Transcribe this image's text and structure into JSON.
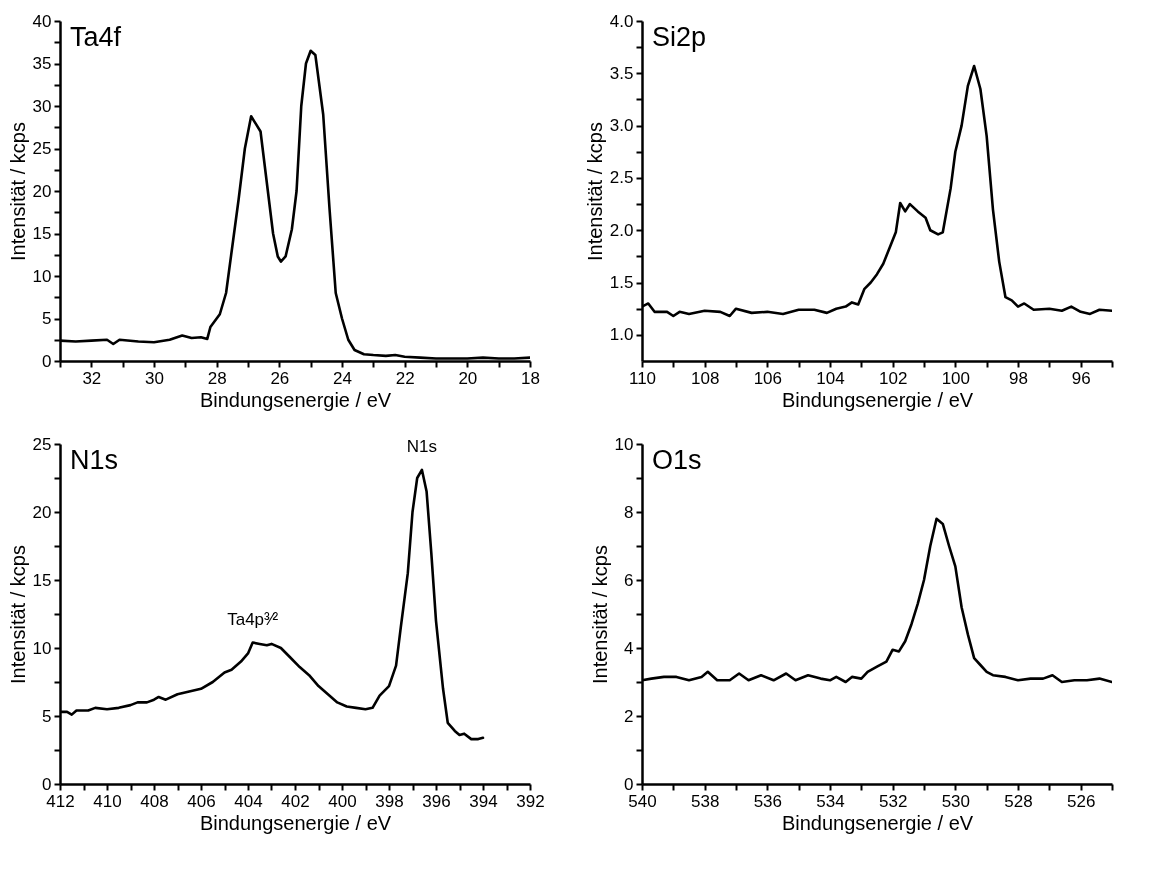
{
  "chart_data": [
    {
      "type": "line",
      "title": "Ta4f",
      "xlabel": "Bindungsenergie / eV",
      "ylabel": "Intensität / kcps",
      "color": "#000000",
      "line_style": "solid",
      "xlim": [
        33,
        18
      ],
      "ylim": [
        0,
        40
      ],
      "xticks": [
        {
          "value": 33,
          "label": null
        },
        32,
        {
          "value": 31,
          "label": null
        },
        30,
        {
          "value": 29,
          "label": null
        },
        28,
        {
          "value": 27,
          "label": null
        },
        26,
        {
          "value": 25,
          "label": null
        },
        24,
        {
          "value": 23,
          "label": null
        },
        22,
        {
          "value": 21,
          "label": null
        },
        20,
        {
          "value": 19,
          "label": null
        },
        18
      ],
      "yticks": [
        0,
        {
          "value": 2.5,
          "label": null
        },
        5,
        {
          "value": 7.5,
          "label": null
        },
        10,
        {
          "value": 12.5,
          "label": null
        },
        15,
        {
          "value": 17.5,
          "label": null
        },
        20,
        {
          "value": 22.5,
          "label": null
        },
        25,
        {
          "value": 27.5,
          "label": null
        },
        30,
        {
          "value": 32.5,
          "label": null
        },
        35,
        {
          "value": 37.5,
          "label": null
        },
        40
      ],
      "x": [
        33,
        32.5,
        32,
        31.5,
        31.3,
        31.1,
        30.5,
        30,
        29.5,
        29.1,
        28.8,
        28.5,
        28.3,
        28.2,
        27.9,
        27.7,
        27.5,
        27.3,
        27.1,
        26.9,
        26.6,
        26.4,
        26.2,
        26.05,
        25.95,
        25.8,
        25.6,
        25.45,
        25.3,
        25.15,
        25.0,
        24.85,
        24.6,
        24.4,
        24.2,
        24.0,
        23.8,
        23.6,
        23.3,
        23.0,
        22.6,
        22.3,
        22.0,
        21.5,
        21.0,
        20.0,
        19.5,
        19.0,
        18.5,
        18.0
      ],
      "values": [
        2.4,
        2.3,
        2.4,
        2.5,
        2.0,
        2.5,
        2.3,
        2.2,
        2.5,
        3.0,
        2.7,
        2.8,
        2.6,
        4.0,
        5.5,
        8.0,
        13.5,
        19,
        25,
        28.8,
        27,
        21,
        15,
        12.3,
        11.7,
        12.3,
        15.5,
        20,
        30,
        35,
        36.5,
        36,
        29,
        18,
        8,
        5,
        2.5,
        1.3,
        0.8,
        0.7,
        0.6,
        0.7,
        0.5,
        0.4,
        0.3,
        0.3,
        0.4,
        0.3,
        0.3,
        0.4
      ]
    },
    {
      "type": "line",
      "title": "Si2p",
      "xlabel": "Bindungsenergie / eV",
      "ylabel": "Intensität / kcps",
      "color": "#000000",
      "line_style": "solid",
      "xlim": [
        110,
        95
      ],
      "ylim": [
        0.75,
        4.0
      ],
      "xticks": [
        110,
        {
          "value": 109,
          "label": null
        },
        108,
        {
          "value": 107,
          "label": null
        },
        106,
        {
          "value": 105,
          "label": null
        },
        104,
        {
          "value": 103,
          "label": null
        },
        102,
        {
          "value": 101,
          "label": null
        },
        100,
        {
          "value": 99,
          "label": null
        },
        98,
        {
          "value": 97,
          "label": null
        },
        96,
        {
          "value": 95,
          "label": null
        }
      ],
      "yticks": [
        {
          "value": 1,
          "label": "1.0"
        },
        {
          "value": 1.25,
          "label": null
        },
        1.5,
        {
          "value": 1.75,
          "label": null
        },
        {
          "value": 2,
          "label": "2.0"
        },
        {
          "value": 2.25,
          "label": null
        },
        2.5,
        {
          "value": 2.75,
          "label": null
        },
        {
          "value": 3,
          "label": "3.0"
        },
        {
          "value": 3.25,
          "label": null
        },
        3.5,
        {
          "value": 3.75,
          "label": null
        },
        {
          "value": 4,
          "label": "4.0"
        }
      ],
      "x": [
        110,
        109.8,
        109.6,
        109.2,
        109,
        108.8,
        108.5,
        108,
        107.5,
        107.2,
        107,
        106.5,
        106,
        105.5,
        105,
        104.5,
        104.1,
        103.8,
        103.5,
        103.3,
        103.1,
        102.9,
        102.7,
        102.5,
        102.3,
        102.1,
        101.9,
        101.76,
        101.6,
        101.45,
        101.2,
        100.95,
        100.8,
        100.55,
        100.4,
        100.15,
        100.0,
        99.8,
        99.6,
        99.4,
        99.2,
        99.0,
        98.8,
        98.6,
        98.4,
        98.2,
        98.0,
        97.8,
        97.5,
        97,
        96.6,
        96.3,
        96,
        95.7,
        95.4,
        95
      ],
      "values": [
        1.27,
        1.3,
        1.22,
        1.22,
        1.18,
        1.22,
        1.2,
        1.23,
        1.22,
        1.18,
        1.25,
        1.21,
        1.22,
        1.2,
        1.24,
        1.24,
        1.21,
        1.25,
        1.27,
        1.31,
        1.29,
        1.44,
        1.5,
        1.58,
        1.68,
        1.83,
        1.98,
        2.26,
        2.18,
        2.25,
        2.18,
        2.12,
        2.0,
        1.96,
        1.98,
        2.4,
        2.75,
        3.0,
        3.38,
        3.57,
        3.35,
        2.9,
        2.2,
        1.7,
        1.36,
        1.33,
        1.27,
        1.3,
        1.24,
        1.25,
        1.23,
        1.27,
        1.22,
        1.2,
        1.24,
        1.23
      ]
    },
    {
      "type": "line",
      "title": "N1s",
      "xlabel": "Bindungsenergie / eV",
      "ylabel": "Intensität / kcps",
      "color": "#000000",
      "line_style": "solid",
      "xlim": [
        412,
        392
      ],
      "ylim": [
        0,
        25
      ],
      "xticks": [
        412,
        {
          "value": 411,
          "label": null
        },
        410,
        {
          "value": 409,
          "label": null
        },
        408,
        {
          "value": 407,
          "label": null
        },
        406,
        {
          "value": 405,
          "label": null
        },
        404,
        {
          "value": 403,
          "label": null
        },
        402,
        {
          "value": 401,
          "label": null
        },
        400,
        {
          "value": 399,
          "label": null
        },
        398,
        {
          "value": 397,
          "label": null
        },
        396,
        {
          "value": 395,
          "label": null
        },
        394,
        {
          "value": 393,
          "label": null
        },
        392
      ],
      "yticks": [
        0,
        {
          "value": 2.5,
          "label": null
        },
        5,
        {
          "value": 7.5,
          "label": null
        },
        10,
        {
          "value": 12.5,
          "label": null
        },
        15,
        {
          "value": 17.5,
          "label": null
        },
        20,
        {
          "value": 22.5,
          "label": null
        },
        25
      ],
      "annotations": [
        {
          "text": "Ta4p³⁄²",
          "x": 403.8,
          "y": 10.4
        },
        {
          "text": "N1s",
          "x": 396.6,
          "y": 23.1
        }
      ],
      "x": [
        412,
        411.7,
        411.5,
        411.3,
        410.8,
        410.5,
        410,
        409.5,
        409,
        408.7,
        408.3,
        408,
        407.8,
        407.5,
        407,
        406.5,
        406,
        405.5,
        405,
        404.7,
        404.3,
        404,
        403.8,
        403.5,
        403.2,
        403,
        402.6,
        402.2,
        401.8,
        401.4,
        401,
        400.6,
        400.2,
        399.8,
        399.4,
        399.0,
        398.7,
        398.4,
        398.0,
        397.7,
        397.5,
        397.2,
        397.0,
        396.8,
        396.6,
        396.4,
        396.2,
        396.0,
        395.7,
        395.5,
        395.2,
        395,
        394.8,
        394.5,
        394.2,
        394.0
      ],
      "values": [
        5.3,
        5.3,
        5.1,
        5.4,
        5.4,
        5.6,
        5.5,
        5.6,
        5.8,
        6.0,
        6.0,
        6.2,
        6.4,
        6.2,
        6.6,
        6.8,
        7.0,
        7.5,
        8.2,
        8.4,
        9.0,
        9.6,
        10.4,
        10.3,
        10.2,
        10.3,
        10.0,
        9.3,
        8.6,
        8.0,
        7.2,
        6.6,
        6.0,
        5.7,
        5.6,
        5.5,
        5.6,
        6.5,
        7.2,
        8.7,
        11.5,
        15.5,
        20,
        22.5,
        23.1,
        21.5,
        17,
        12,
        7,
        4.5,
        3.9,
        3.6,
        3.7,
        3.3,
        3.3,
        3.4
      ]
    },
    {
      "type": "line",
      "title": "O1s",
      "xlabel": "Bindungsenergie / eV",
      "ylabel": "Intensität / kcps",
      "color": "#000000",
      "line_style": "solid",
      "xlim": [
        540,
        525
      ],
      "ylim": [
        0,
        10
      ],
      "xticks": [
        540,
        {
          "value": 539,
          "label": null
        },
        538,
        {
          "value": 537,
          "label": null
        },
        536,
        {
          "value": 535,
          "label": null
        },
        534,
        {
          "value": 533,
          "label": null
        },
        532,
        {
          "value": 531,
          "label": null
        },
        530,
        {
          "value": 529,
          "label": null
        },
        528,
        {
          "value": 527,
          "label": null
        },
        526,
        {
          "value": 525,
          "label": null
        }
      ],
      "yticks": [
        0,
        {
          "value": 1,
          "label": null
        },
        2,
        {
          "value": 3,
          "label": null
        },
        4,
        {
          "value": 5,
          "label": null
        },
        6,
        {
          "value": 7,
          "label": null
        },
        8,
        {
          "value": 9,
          "label": null
        },
        10
      ],
      "x": [
        540,
        539.7,
        539.3,
        538.9,
        538.5,
        538.1,
        537.9,
        537.6,
        537.2,
        536.9,
        536.6,
        536.2,
        535.8,
        535.4,
        535.1,
        534.7,
        534.3,
        534,
        533.8,
        533.5,
        533.3,
        533.0,
        532.8,
        532.5,
        532.2,
        532.0,
        531.8,
        531.6,
        531.4,
        531.2,
        531.0,
        530.8,
        530.6,
        530.4,
        530.2,
        530.0,
        529.8,
        529.6,
        529.4,
        529.2,
        529.0,
        528.8,
        528.4,
        528,
        527.6,
        527.2,
        526.9,
        526.6,
        526.2,
        525.8,
        525.4,
        525
      ],
      "values": [
        3.05,
        3.1,
        3.15,
        3.15,
        3.05,
        3.15,
        3.3,
        3.05,
        3.05,
        3.25,
        3.05,
        3.2,
        3.05,
        3.25,
        3.05,
        3.2,
        3.1,
        3.05,
        3.15,
        3.0,
        3.15,
        3.1,
        3.3,
        3.45,
        3.6,
        3.95,
        3.9,
        4.2,
        4.7,
        5.3,
        6.0,
        7.0,
        7.8,
        7.65,
        7.0,
        6.4,
        5.2,
        4.4,
        3.7,
        3.5,
        3.3,
        3.2,
        3.15,
        3.05,
        3.1,
        3.1,
        3.2,
        3.0,
        3.05,
        3.05,
        3.1,
        3.0
      ]
    }
  ]
}
